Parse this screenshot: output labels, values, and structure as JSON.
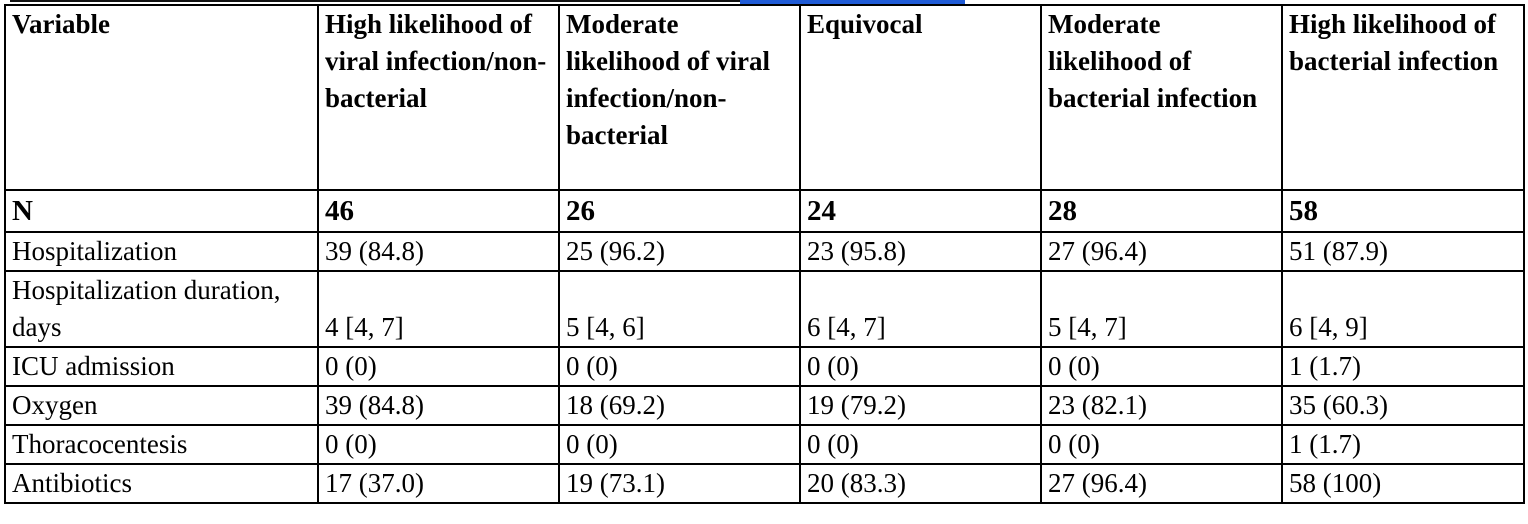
{
  "table": {
    "headers": [
      "Variable",
      "High likelihood of viral infection/non-bacterial",
      "Moderate likelihood of viral infection/non-bacterial",
      "Equivocal",
      "Moderate likelihood of bacterial infection",
      "High likelihood of bacterial infection"
    ],
    "n_row": {
      "label": "N",
      "values": [
        "46",
        "26",
        "24",
        "28",
        "58"
      ]
    },
    "rows": [
      {
        "label": "Hospitalization",
        "values": [
          "39 (84.8)",
          "25 (96.2)",
          "23 (95.8)",
          "27 (96.4)",
          "51 (87.9)"
        ]
      },
      {
        "label": "Hospitalization duration, days",
        "values": [
          "4 [4, 7]",
          "5 [4, 6]",
          "6 [4, 7]",
          "5 [4, 7]",
          "6 [4, 9]"
        ]
      },
      {
        "label": "ICU admission",
        "values": [
          "0 (0)",
          "0 (0)",
          "0 (0)",
          "0 (0)",
          "1 (1.7)"
        ]
      },
      {
        "label": "Oxygen",
        "values": [
          "39 (84.8)",
          "18 (69.2)",
          "19 (79.2)",
          "23 (82.1)",
          "35 (60.3)"
        ]
      },
      {
        "label": "Thoracocentesis",
        "values": [
          "0 (0)",
          "0 (0)",
          "0 (0)",
          "0 (0)",
          "1 (1.7)"
        ]
      },
      {
        "label": "Antibiotics",
        "values": [
          "17 (37.0)",
          "19 (73.1)",
          "20 (83.3)",
          "27 (96.4)",
          "58 (100)"
        ]
      }
    ]
  }
}
